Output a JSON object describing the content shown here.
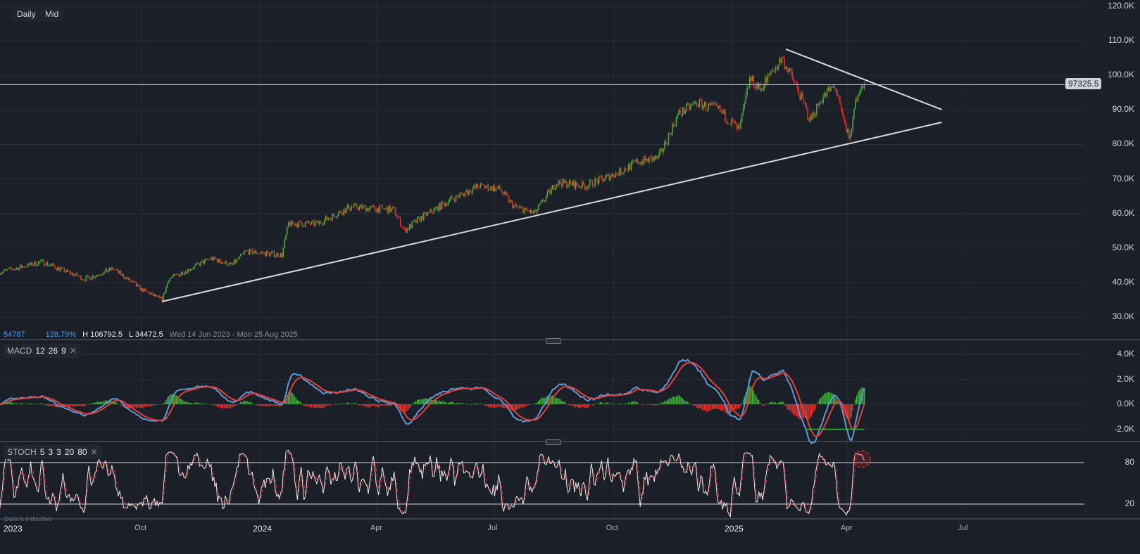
{
  "toolbar": {
    "interval": "Daily",
    "price_type": "Mid"
  },
  "legend": {
    "value": "54787",
    "change_pct": "128.79%",
    "high": "H 106792.5",
    "low": "L 34472.5",
    "range": "Wed 14 Jun 2023 - Mon 25 Aug 2025"
  },
  "last_price": "97325.5",
  "macd_label": {
    "name": "MACD",
    "p1": "12",
    "p2": "26",
    "p3": "9",
    "close": "✕"
  },
  "stoch_label": {
    "name": "STOCH",
    "p1": "5",
    "p2": "3",
    "p3": "3",
    "p4": "20",
    "p5": "80",
    "close": "✕"
  },
  "disclaimer": "Data is indicative",
  "colors": {
    "up": "#3fae3a",
    "down": "#e5302c",
    "macd": "#5b9bd5",
    "signal": "#e5403c",
    "stoch_k": "#e8e8e8",
    "stoch_d": "#d2232a",
    "trendline": "#d9d9d9",
    "background": "#1b1f27"
  },
  "chart_data": [
    {
      "type": "candlestick",
      "price_axis": {
        "ticks": [
          "120.0K",
          "110.0K",
          "100.0K",
          "90.0K",
          "80.0K",
          "70.0K",
          "60.0K",
          "50.0K",
          "40.0K",
          "30.0K"
        ],
        "range": [
          30000,
          120000
        ]
      },
      "x_ticks": [
        "2023",
        "Oct",
        "2024",
        "Apr",
        "Jul",
        "Oct",
        "2025",
        "Apr",
        "Jul"
      ],
      "grid": true,
      "approx_close_path": [
        [
          "2023-06-13",
          43000
        ],
        [
          "2023-07-16",
          46000
        ],
        [
          "2023-08-18",
          41000
        ],
        [
          "2023-09-09",
          44000
        ],
        [
          "2023-10-01",
          38000
        ],
        [
          "2023-10-17",
          35000
        ],
        [
          "2023-10-22",
          41000
        ],
        [
          "2023-11-24",
          47000
        ],
        [
          "2023-12-10",
          45000
        ],
        [
          "2023-12-21",
          49000
        ],
        [
          "2024-01-18",
          48000
        ],
        [
          "2024-01-23",
          57000
        ],
        [
          "2024-02-14",
          57000
        ],
        [
          "2024-03-12",
          62000
        ],
        [
          "2024-04-14",
          61000
        ],
        [
          "2024-04-22",
          55000
        ],
        [
          "2024-05-06",
          59000
        ],
        [
          "2024-05-28",
          64000
        ],
        [
          "2024-06-19",
          68000
        ],
        [
          "2024-07-05",
          67000
        ],
        [
          "2024-07-16",
          62000
        ],
        [
          "2024-08-01",
          60000
        ],
        [
          "2024-08-18",
          69000
        ],
        [
          "2024-09-09",
          68000
        ],
        [
          "2024-10-06",
          72000
        ],
        [
          "2024-10-20",
          75000
        ],
        [
          "2024-11-05",
          76000
        ],
        [
          "2024-11-21",
          89000
        ],
        [
          "2024-12-05",
          92000
        ],
        [
          "2024-12-22",
          90000
        ],
        [
          "2025-01-07",
          84000
        ],
        [
          "2025-01-15",
          99000
        ],
        [
          "2025-01-23",
          96000
        ],
        [
          "2025-02-09",
          105000
        ],
        [
          "2025-02-20",
          97000
        ],
        [
          "2025-03-03",
          87000
        ],
        [
          "2025-03-11",
          93000
        ],
        [
          "2025-03-22",
          97000
        ],
        [
          "2025-03-30",
          85000
        ],
        [
          "2025-04-03",
          82000
        ],
        [
          "2025-04-07",
          93000
        ],
        [
          "2025-04-14",
          97325.5
        ]
      ],
      "trendlines": [
        {
          "from": [
            "2023-10-17",
            34500
          ],
          "to": [
            "2025-06-13",
            86400
          ]
        },
        {
          "from": [
            "2025-02-12",
            107600
          ],
          "to": [
            "2025-06-13",
            90100
          ]
        }
      ],
      "horizontal_line": 97325.5
    },
    {
      "type": "macd",
      "params": [
        12,
        26,
        9
      ],
      "y_ticks": [
        "4.0K",
        "2.0K",
        "0.0K",
        "-2.0K"
      ],
      "range": [
        -2000,
        4000
      ],
      "annotation": {
        "type": "horizontal",
        "value": -2000,
        "from": "2025-02-28",
        "to": "2025-04-14",
        "color": "#2fbf2f"
      }
    },
    {
      "type": "stochastic",
      "params": [
        5,
        3,
        3,
        20,
        80
      ],
      "y_ticks": [
        "80",
        "20"
      ],
      "levels": [
        20,
        80
      ],
      "annotation": {
        "type": "circle",
        "date": "2025-04-12",
        "value": 85
      }
    }
  ]
}
